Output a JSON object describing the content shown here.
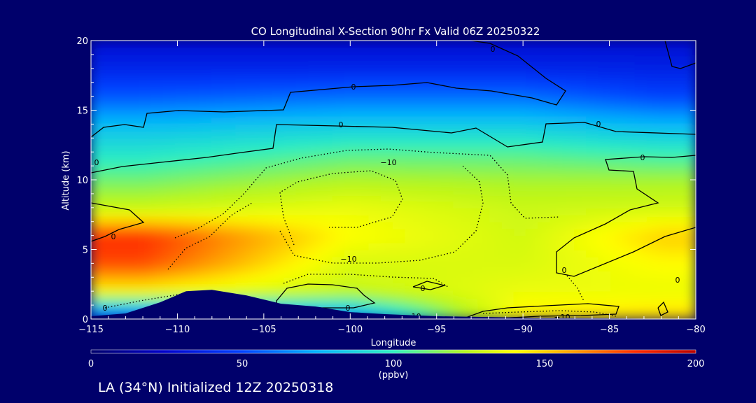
{
  "chart_data": {
    "type": "heatmap",
    "title": "CO Longitudinal X-Section 90hr  Fx Valid 06Z 20250322",
    "xlabel": "Longitude",
    "ylabel": "Altitude (km)",
    "xlim": [
      -115,
      -80
    ],
    "ylim": [
      0,
      20
    ],
    "x_ticks": [
      -115,
      -110,
      -105,
      -100,
      -95,
      -90,
      -85,
      -80
    ],
    "x_tick_labels": [
      "−115",
      "−110",
      "−105",
      "−100",
      "−95",
      "−90",
      "−85",
      "−80"
    ],
    "y_ticks": [
      0,
      5,
      10,
      15,
      20
    ],
    "y_tick_labels": [
      "0",
      "5",
      "10",
      "15",
      "20"
    ],
    "colorbar": {
      "label": "(ppbv)",
      "range": [
        0,
        200
      ],
      "ticks": [
        0,
        50,
        100,
        150,
        200
      ],
      "tick_labels": [
        "0",
        "50",
        "100",
        "150",
        "200"
      ]
    },
    "value_bands_ppbv": {
      "altitudes_km": [
        0,
        2,
        4,
        6,
        8,
        10,
        12,
        14,
        16,
        18,
        20
      ],
      "at_lon_-112": [
        40,
        140,
        175,
        180,
        125,
        110,
        95,
        80,
        55,
        40,
        30
      ],
      "at_lon_-100": [
        60,
        125,
        130,
        140,
        135,
        120,
        105,
        85,
        60,
        40,
        30
      ],
      "at_lon_-90": [
        145,
        135,
        130,
        128,
        126,
        118,
        105,
        85,
        60,
        40,
        30
      ],
      "at_lon_-82": [
        150,
        135,
        140,
        150,
        128,
        118,
        100,
        78,
        50,
        38,
        30
      ]
    },
    "terrain": {
      "longitudes": [
        -115,
        -113,
        -111,
        -109.5,
        -108,
        -106,
        -104,
        -102,
        -100,
        -98,
        -95,
        -90,
        -85,
        -80
      ],
      "heights_km": [
        0.2,
        0.4,
        1.2,
        2.0,
        2.1,
        1.7,
        1.1,
        0.9,
        0.5,
        0.35,
        0.2,
        0.1,
        0.05,
        0.0
      ]
    },
    "contour_labels": [
      "0",
      "0",
      "0",
      "0",
      "0",
      "0",
      "0",
      "0",
      "0",
      "0",
      "0",
      "0",
      "−10",
      "−10",
      "−10",
      "−10"
    ]
  },
  "footer": "LA (34°N) Initialized 12Z 20250318",
  "colors": {
    "background": "#00006b",
    "terrain": "#00006b",
    "contour": "#000000"
  }
}
